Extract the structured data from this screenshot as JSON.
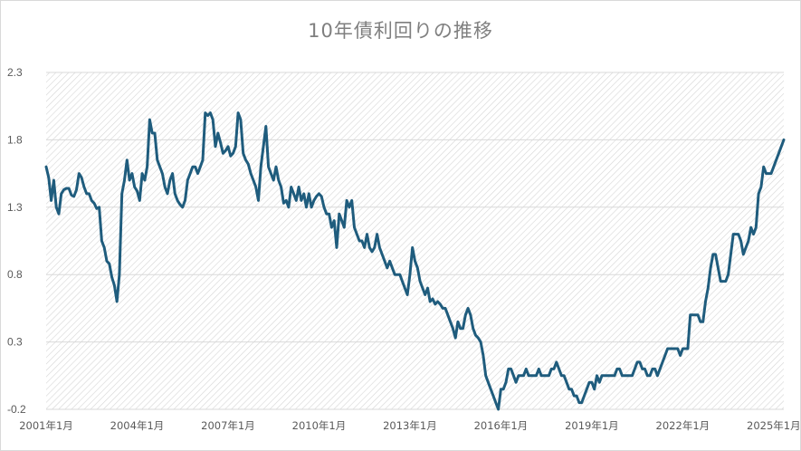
{
  "chart_data": {
    "type": "line",
    "title": "10年債利回りの推移",
    "xlabel": "",
    "ylabel": "",
    "ylim": [
      -0.2,
      2.3
    ],
    "y_ticks": [
      "2.3",
      "1.8",
      "1.3",
      "0.8",
      "0.3",
      "-0.2"
    ],
    "x_tick_labels": [
      "2001年1月",
      "2004年1月",
      "2007年1月",
      "2010年1月",
      "2013年1月",
      "2016年1月",
      "2019年1月",
      "2022年1月",
      "2025年1月"
    ],
    "grid": "horizontal",
    "legend": "none",
    "x_start": "2001-01",
    "x_end": "2025-12",
    "series": [
      {
        "color": "#1f5c7d",
        "values": [
          1.6,
          1.52,
          1.35,
          1.5,
          1.3,
          1.25,
          1.4,
          1.43,
          1.44,
          1.44,
          1.39,
          1.38,
          1.43,
          1.55,
          1.52,
          1.45,
          1.4,
          1.4,
          1.35,
          1.33,
          1.29,
          1.3,
          1.05,
          1.0,
          0.9,
          0.88,
          0.78,
          0.72,
          0.6,
          0.8,
          1.4,
          1.5,
          1.65,
          1.5,
          1.55,
          1.45,
          1.42,
          1.35,
          1.55,
          1.5,
          1.6,
          1.95,
          1.85,
          1.85,
          1.65,
          1.6,
          1.55,
          1.45,
          1.4,
          1.5,
          1.55,
          1.4,
          1.35,
          1.32,
          1.3,
          1.35,
          1.5,
          1.55,
          1.6,
          1.6,
          1.55,
          1.6,
          1.65,
          2.0,
          1.98,
          2.0,
          1.95,
          1.75,
          1.85,
          1.78,
          1.7,
          1.72,
          1.75,
          1.68,
          1.7,
          1.75,
          2.0,
          1.95,
          1.7,
          1.65,
          1.62,
          1.55,
          1.5,
          1.45,
          1.35,
          1.6,
          1.75,
          1.9,
          1.6,
          1.55,
          1.5,
          1.6,
          1.5,
          1.45,
          1.33,
          1.35,
          1.3,
          1.45,
          1.4,
          1.35,
          1.45,
          1.35,
          1.4,
          1.3,
          1.4,
          1.3,
          1.35,
          1.38,
          1.4,
          1.38,
          1.3,
          1.25,
          1.25,
          1.15,
          1.2,
          1.0,
          1.25,
          1.2,
          1.15,
          1.35,
          1.3,
          1.35,
          1.15,
          1.1,
          1.05,
          1.05,
          1.0,
          1.1,
          1.0,
          0.97,
          1.0,
          1.1,
          1.0,
          0.95,
          0.9,
          0.85,
          0.9,
          0.85,
          0.8,
          0.8,
          0.8,
          0.75,
          0.7,
          0.65,
          0.8,
          1.0,
          0.9,
          0.85,
          0.75,
          0.7,
          0.65,
          0.7,
          0.6,
          0.62,
          0.58,
          0.6,
          0.58,
          0.55,
          0.55,
          0.5,
          0.45,
          0.4,
          0.33,
          0.45,
          0.4,
          0.4,
          0.5,
          0.55,
          0.5,
          0.4,
          0.35,
          0.33,
          0.3,
          0.2,
          0.05,
          0.0,
          -0.05,
          -0.1,
          -0.15,
          -0.2,
          -0.05,
          -0.05,
          0.0,
          0.1,
          0.1,
          0.05,
          0.0,
          0.05,
          0.05,
          0.05,
          0.1,
          0.05,
          0.05,
          0.05,
          0.05,
          0.1,
          0.05,
          0.05,
          0.05,
          0.05,
          0.1,
          0.1,
          0.15,
          0.1,
          0.05,
          0.05,
          0.0,
          -0.05,
          -0.05,
          -0.1,
          -0.1,
          -0.15,
          -0.15,
          -0.1,
          -0.05,
          0.0,
          0.0,
          -0.05,
          0.05,
          0.0,
          0.05,
          0.05,
          0.05,
          0.05,
          0.05,
          0.05,
          0.1,
          0.1,
          0.05,
          0.05,
          0.05,
          0.05,
          0.05,
          0.1,
          0.15,
          0.15,
          0.1,
          0.1,
          0.05,
          0.05,
          0.1,
          0.1,
          0.05,
          0.1,
          0.15,
          0.2,
          0.25,
          0.25,
          0.25,
          0.25,
          0.25,
          0.2,
          0.25,
          0.25,
          0.25,
          0.5,
          0.5,
          0.5,
          0.5,
          0.45,
          0.45,
          0.6,
          0.7,
          0.85,
          0.95,
          0.95,
          0.85,
          0.75,
          0.75,
          0.75,
          0.8,
          0.95,
          1.1,
          1.1,
          1.1,
          1.05,
          0.95,
          1.0,
          1.05,
          1.15,
          1.1,
          1.15,
          1.4,
          1.45,
          1.6,
          1.55,
          1.55,
          1.55,
          1.6,
          1.65,
          1.7,
          1.75,
          1.8
        ]
      }
    ]
  }
}
